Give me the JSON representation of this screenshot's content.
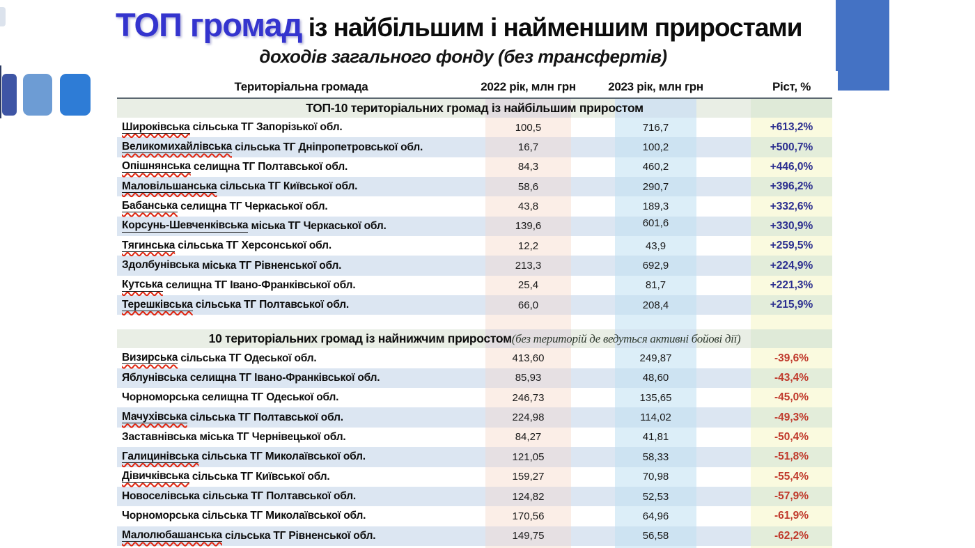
{
  "title": {
    "highlight": "ТОП громад",
    "rest": " із найбільшим і найменшим приростами",
    "subtitle": "доходів загального фонду (без трансфертів)"
  },
  "table": {
    "headers": {
      "name": "Територіальна громада",
      "y2022": "2022 рік, млн грн",
      "y2023": "2023 рік, млн грн",
      "growth": "Ріст, %"
    },
    "sections": [
      {
        "title": "ТОП-10 територіальних громад із найбільшим приростом",
        "title_note": "",
        "rows": [
          {
            "first": "Широківська",
            "rest": "сільська ТГ Запорізької обл.",
            "v2022": "100,5",
            "v2023": "716,7",
            "growth": "+613,2%",
            "underline": true,
            "wavy": true,
            "raised2023": false
          },
          {
            "first": "Великомихайлівська",
            "rest": "сільська ТГ Дніпропетровської обл.",
            "v2022": "16,7",
            "v2023": "100,2",
            "growth": "+500,7%",
            "underline": true,
            "wavy": true,
            "raised2023": false
          },
          {
            "first": "Опішнянська",
            "rest": "селищна ТГ Полтавської обл.",
            "v2022": "84,3",
            "v2023": "460,2",
            "growth": "+446,0%",
            "underline": true,
            "wavy": true,
            "raised2023": false
          },
          {
            "first": "Маловільшанська",
            "rest": "сільська ТГ Київської обл.",
            "v2022": "58,6",
            "v2023": "290,7",
            "growth": "+396,2%",
            "underline": true,
            "wavy": true,
            "raised2023": false
          },
          {
            "first": "Бабанська",
            "rest": "селищна ТГ Черкаської обл.",
            "v2022": "43,8",
            "v2023": "189,3",
            "growth": "+332,6%",
            "underline": true,
            "wavy": true,
            "raised2023": false
          },
          {
            "first": "Корсунь-Шевченківська",
            "rest": "міська ТГ Черкаської обл.",
            "v2022": "139,6",
            "v2023": "601,6",
            "growth": "+330,9%",
            "underline": true,
            "wavy": false,
            "raised2023": true
          },
          {
            "first": "Тягинська",
            "rest": "сільська ТГ Херсонської обл.",
            "v2022": "12,2",
            "v2023": "43,9",
            "growth": "+259,5%",
            "underline": true,
            "wavy": true,
            "raised2023": false
          },
          {
            "first": "Здолбунівська",
            "rest": "міська ТГ Рівненської обл.",
            "v2022": "213,3",
            "v2023": "692,9",
            "growth": "+224,9%",
            "underline": false,
            "wavy": false,
            "raised2023": false
          },
          {
            "first": "Кутська",
            "rest": "селищна ТГ Івано-Франківської обл.",
            "v2022": "25,4",
            "v2023": "81,7",
            "growth": "+221,3%",
            "underline": true,
            "wavy": true,
            "raised2023": false
          },
          {
            "first": "Терешківська",
            "rest": "сільська ТГ Полтавської обл.",
            "v2022": "66,0",
            "v2023": "208,4",
            "growth": "+215,9%",
            "underline": true,
            "wavy": true,
            "raised2023": false
          }
        ]
      },
      {
        "title": "10 територіальних громад із найнижчим приростом",
        "title_note": " (без територій де ведуться активні бойові дії)",
        "rows": [
          {
            "first": "Визирська",
            "rest": "сільська ТГ Одеської обл.",
            "v2022": "413,60",
            "v2023": "249,87",
            "growth": "-39,6%",
            "underline": true,
            "wavy": true,
            "raised2023": false
          },
          {
            "first": "Яблунівська",
            "rest": "селищна ТГ Івано-Франківської обл.",
            "v2022": "85,93",
            "v2023": "48,60",
            "growth": "-43,4%",
            "underline": false,
            "wavy": false,
            "raised2023": false
          },
          {
            "first": "Чорноморська",
            "rest": "селищна ТГ Одеської обл.",
            "v2022": "246,73",
            "v2023": "135,65",
            "growth": "-45,0%",
            "underline": false,
            "wavy": false,
            "raised2023": false
          },
          {
            "first": "Мачухівська",
            "rest": "сільська ТГ Полтавської обл.",
            "v2022": "224,98",
            "v2023": "114,02",
            "growth": "-49,3%",
            "underline": true,
            "wavy": true,
            "raised2023": false
          },
          {
            "first": "Заставнівська",
            "rest": "міська ТГ Чернівецької обл.",
            "v2022": "84,27",
            "v2023": "41,81",
            "growth": "-50,4%",
            "underline": false,
            "wavy": false,
            "raised2023": false
          },
          {
            "first": "Галицинівська",
            "rest": "сільська ТГ Миколаївської обл.",
            "v2022": "121,05",
            "v2023": "58,33",
            "growth": "-51,8%",
            "underline": true,
            "wavy": true,
            "raised2023": false
          },
          {
            "first": "Дівичківська",
            "rest": "сільська ТГ Київської обл.",
            "v2022": "159,27",
            "v2023": "70,98",
            "growth": "-55,4%",
            "underline": true,
            "wavy": true,
            "raised2023": false
          },
          {
            "first": "Новоселівська",
            "rest": "сільська ТГ Полтавської обл.",
            "v2022": "124,82",
            "v2023": "52,53",
            "growth": "-57,9%",
            "underline": false,
            "wavy": false,
            "raised2023": false
          },
          {
            "first": "Чорноморська",
            "rest": "сільська ТГ Миколаївської обл.",
            "v2022": "170,56",
            "v2023": "64,96",
            "growth": "-61,9%",
            "underline": false,
            "wavy": false,
            "raised2023": false
          },
          {
            "first": "Малолюбашанська",
            "rest": "сільська ТГ Рівненської обл.",
            "v2022": "149,75",
            "v2023": "56,58",
            "growth": "-62,2%",
            "underline": true,
            "wavy": true,
            "raised2023": false
          }
        ]
      }
    ]
  },
  "colors": {
    "title_accent": "#3434CE",
    "growth_positive": "#2B2E8F",
    "growth_negative": "#C0392B",
    "spellcheck_red": "#E0250F",
    "row_alt": "#DCE6F2",
    "band_2022": "#FBEEE7",
    "band_2023": "#DCEEF8",
    "band_growth_odd": "#FAFADF",
    "band_growth_even": "#E3EDDA",
    "shape_blue": "#4472C4"
  }
}
